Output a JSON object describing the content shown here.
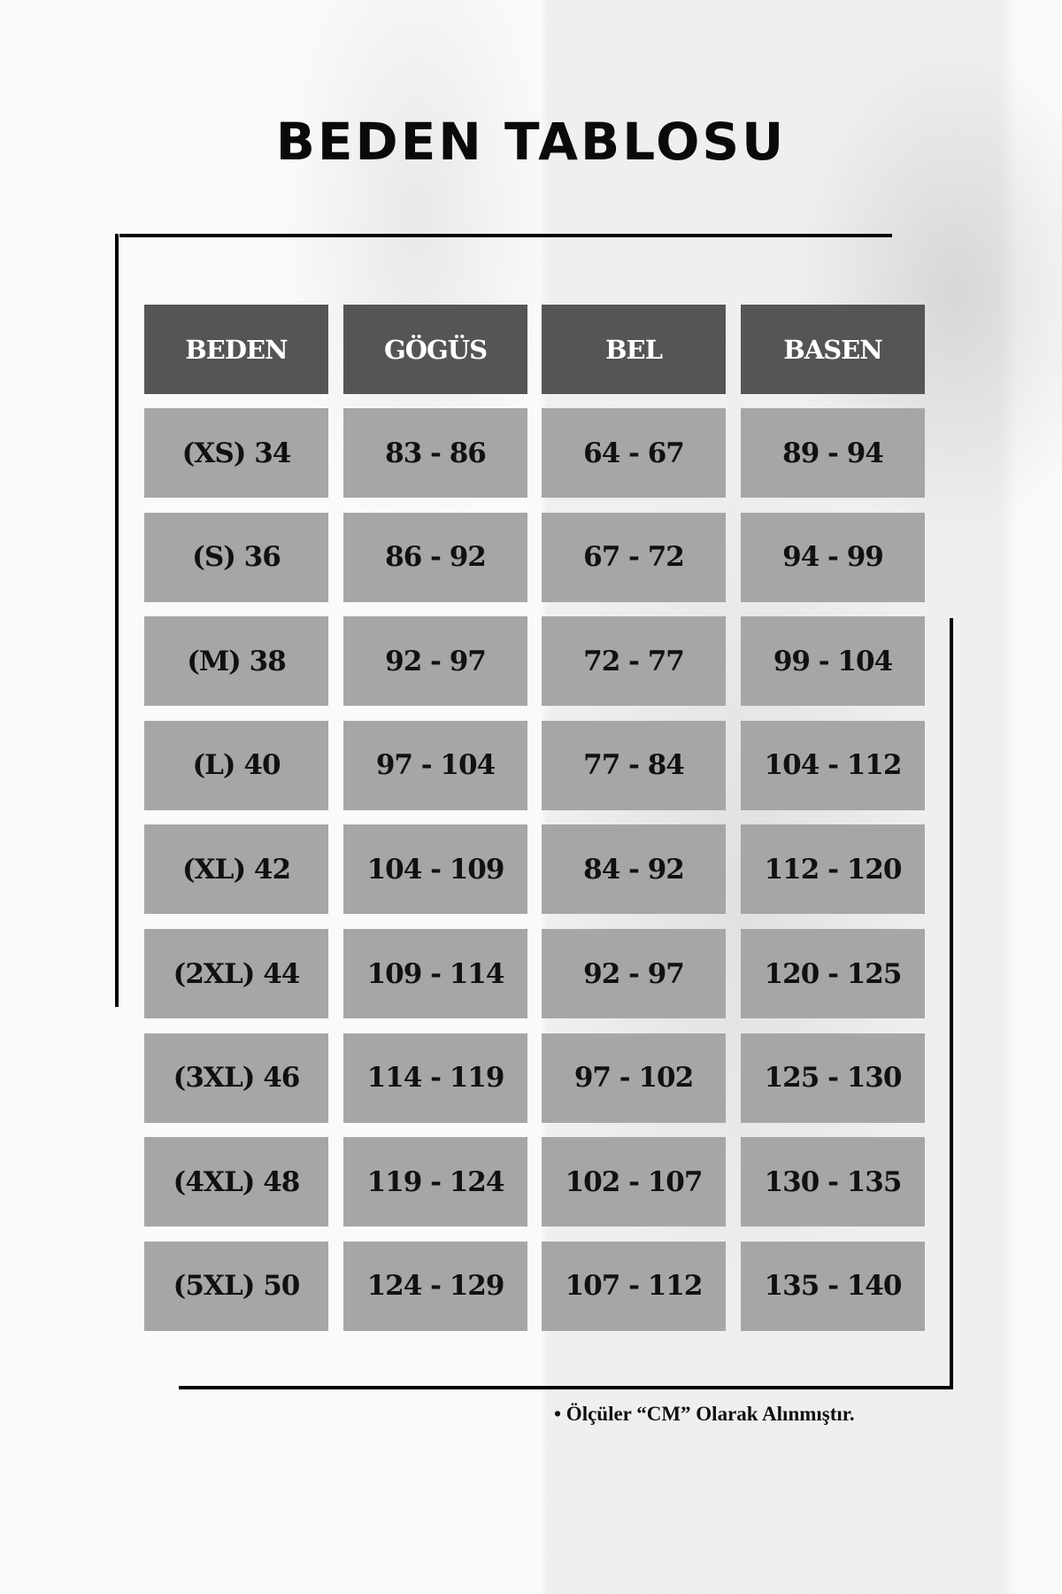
{
  "title": "BEDEN TABLOSU",
  "table": {
    "headers": [
      "BEDEN",
      "GÖGÜS",
      "BEL",
      "BASEN"
    ],
    "rows": [
      [
        "(XS) 34",
        "83 - 86",
        "64 - 67",
        "89 - 94"
      ],
      [
        "(S) 36",
        "86 - 92",
        "67 - 72",
        "94 - 99"
      ],
      [
        "(M) 38",
        "92 - 97",
        "72 - 77",
        "99 - 104"
      ],
      [
        "(L) 40",
        "97 - 104",
        "77 - 84",
        "104 - 112"
      ],
      [
        "(XL) 42",
        "104 - 109",
        "84 - 92",
        "112 - 120"
      ],
      [
        "(2XL) 44",
        "109 - 114",
        "92 - 97",
        "120 - 125"
      ],
      [
        "(3XL) 46",
        "114 - 119",
        "97 - 102",
        "125 - 130"
      ],
      [
        "(4XL) 48",
        "119 - 124",
        "102 - 107",
        "130 - 135"
      ],
      [
        "(5XL) 50",
        "124 - 129",
        "107 - 112",
        "135 - 140"
      ]
    ]
  },
  "note": "• Ölçüler “CM” Olarak Alınmıştır.",
  "colors": {
    "header": "#555555",
    "cell": "#a6a6a6",
    "frame": "#000000"
  }
}
